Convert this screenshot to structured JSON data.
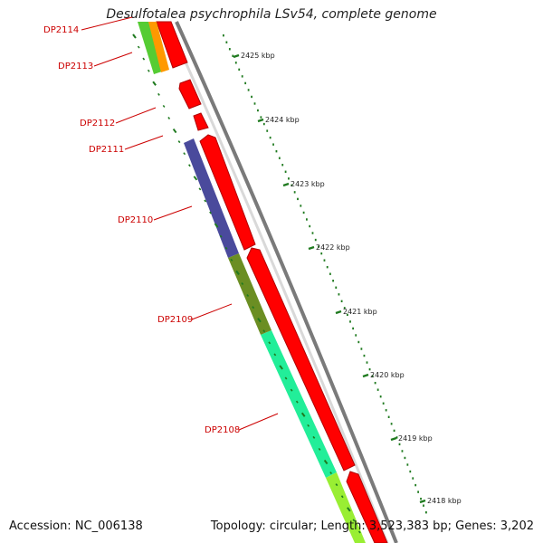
{
  "map": {
    "title": "Desulfotalea psychrophila LSv54, complete genome",
    "accession_text": "Accession: NC_006138",
    "summary_text": "Topology: circular; Length: 3,523,383 bp; Genes: 3,202"
  },
  "genes": [
    {
      "name": "DP2114",
      "color": "#cc0000"
    },
    {
      "name": "DP2113",
      "color": "#cc0000"
    },
    {
      "name": "DP2112",
      "color": "#cc0000"
    },
    {
      "name": "DP2111",
      "color": "#cc0000"
    },
    {
      "name": "DP2110",
      "color": "#cc0000"
    },
    {
      "name": "DP2109",
      "color": "#cc0000"
    },
    {
      "name": "DP2108",
      "color": "#cc0000"
    }
  ],
  "scale_ticks": [
    {
      "label": "2425 kbp"
    },
    {
      "label": "2424 kbp"
    },
    {
      "label": "2423 kbp"
    },
    {
      "label": "2422 kbp"
    },
    {
      "label": "2421 kbp"
    },
    {
      "label": "2420 kbp"
    },
    {
      "label": "2419 kbp"
    },
    {
      "label": "2418 kbp"
    }
  ],
  "colors": {
    "backbone": "#8c8c8c",
    "forward_gene": "#ff0000",
    "tick": "#1f7a1f",
    "label": "#cc0000",
    "cog_blue": "#4a4a9c",
    "cog_olive": "#6b8e23",
    "cog_aqua": "#22ee99",
    "cog_lime": "#99ee33",
    "cog_orange": "#ff9900",
    "cog_green": "#55cc33"
  }
}
